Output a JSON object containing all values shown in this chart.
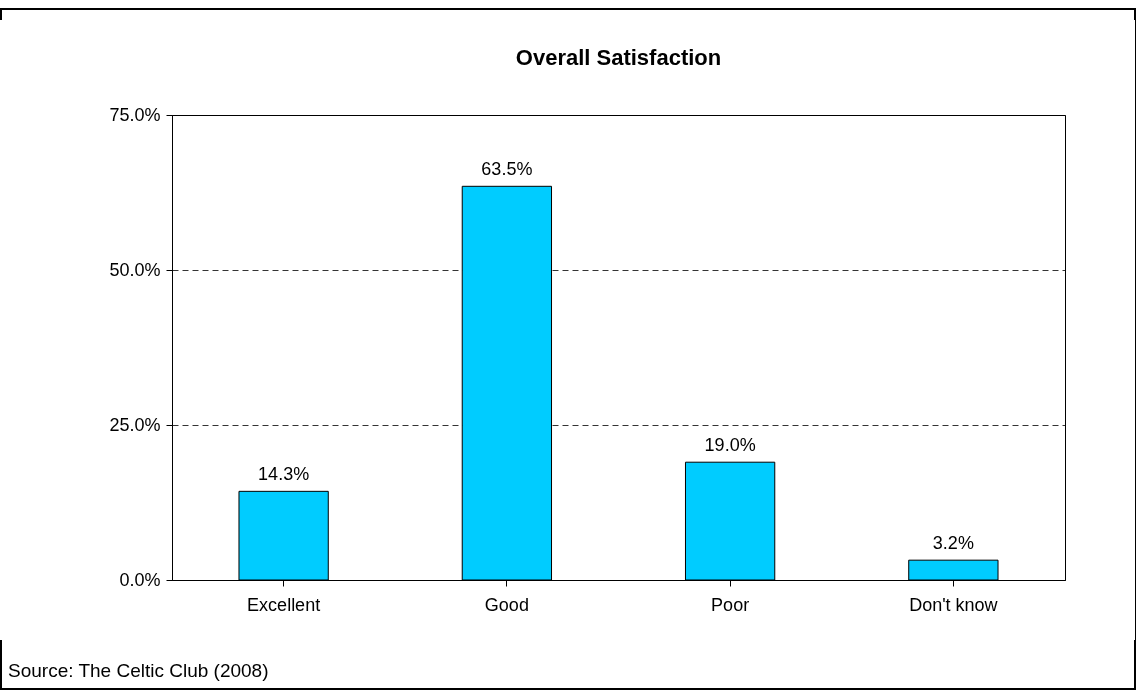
{
  "chart_data": {
    "type": "bar",
    "title": "Overall Satisfaction",
    "categories": [
      "Excellent",
      "Good",
      "Poor",
      "Don't know"
    ],
    "values": [
      14.3,
      63.5,
      19.0,
      3.2
    ],
    "value_labels": [
      "14.3%",
      "63.5%",
      "19.0%",
      "3.2%"
    ],
    "color": "#00ccff",
    "ylim": [
      0,
      75
    ],
    "yticks": [
      {
        "value": 0,
        "label": "0.0%"
      },
      {
        "value": 25,
        "label": "25.0%"
      },
      {
        "value": 50,
        "label": "50.0%"
      },
      {
        "value": 75,
        "label": "75.0%"
      }
    ],
    "grid": "y",
    "annotations": [
      "Source: The Celtic Club (2008)"
    ]
  }
}
